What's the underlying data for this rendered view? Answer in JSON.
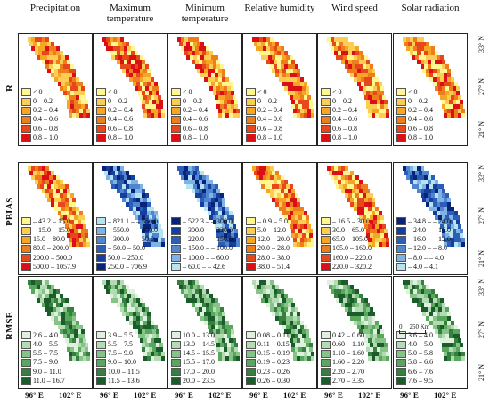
{
  "columns": [
    "Precipitation",
    "Maximum\ntemperature",
    "Minimum\ntemperature",
    "Relative humidity",
    "Wind speed",
    "Solar radiation"
  ],
  "rows": [
    "R",
    "PBIAS",
    "RMSE"
  ],
  "lon_ticks": [
    "96° E",
    "102° E"
  ],
  "lat_ticks": [
    "33° N",
    "27° N",
    "21° N"
  ],
  "scale_bar": {
    "zero": "0",
    "label": "250 Km"
  },
  "palettes": {
    "R": [
      "#fff68f",
      "#fbcd52",
      "#f6a623",
      "#ee7d1c",
      "#e6481c",
      "#db0f16"
    ],
    "PBIAS_warm": [
      "#fff68f",
      "#fbcd52",
      "#f6a623",
      "#ee7d1c",
      "#e6481c",
      "#db0f16"
    ],
    "PBIAS_cool_a": [
      "#b5e3f2",
      "#7fb3e6",
      "#4f86cf",
      "#2c5db7",
      "#163e9c",
      "#08237a"
    ],
    "PBIAS_cool_b": [
      "#08237a",
      "#163e9c",
      "#2c5db7",
      "#4f86cf",
      "#7fb3e6",
      "#b5e3f2"
    ],
    "RMSE": [
      "#dff0df",
      "#b4dbb4",
      "#86c386",
      "#58a75c",
      "#357f3f",
      "#1b5d2a"
    ]
  },
  "legends": {
    "R": [
      "< 0",
      "0 – 0.2",
      "0.2 – 0.4",
      "0.4 – 0.6",
      "0.6 – 0.8",
      "0.8 – 1.0"
    ],
    "PBIAS": [
      [
        "– 43.2 – 15.0",
        "– 15.0 – 15.0",
        "15.0 – 80.0",
        "80.0 – 200.0",
        "200.0 – 500.0",
        "500.0 – 1057.9"
      ],
      [
        "– 821.1 – – 550.0",
        "– 550.0 – – 300.0",
        "– 300.0 – – 50.0",
        "– 50.0 – 50.0",
        "50.0 – 250.0",
        "250.0 – 706.9"
      ],
      [
        "– 522.3 – – 300.0",
        "– 300.0 – – 220.0",
        "– 220.0 – – 150.0",
        "– 150.0 – – 100.0",
        "– 100.0 – – 60.0",
        "– 60.0 – – 42.6"
      ],
      [
        "– 0.9 – 5.0",
        "5.0 – 12.0",
        "12.0 – 20.0",
        "20.0 – 28.0",
        "28.0 – 38.0",
        "38.0 – 51.4"
      ],
      [
        "– 16.5 – 30.0",
        "30.0 – 65.0",
        "65.0 – 105.0",
        "105.0 – 160.0",
        "160.0 – 220.0",
        "220.0 – 320.2"
      ],
      [
        "– 34.8 – – 24.0",
        "– 24.0 – – 16.0",
        "– 16.0 – – 12.0",
        "– 12.0 – – 8.0",
        "– 8.0 – – 4.0",
        "– 4.0 – 4.1"
      ]
    ],
    "RMSE": [
      [
        "2.6 – 4.0",
        "4.0 – 5.5",
        "5.5 – 7.5",
        "7.5 – 9.0",
        "9.0 – 11.0",
        "11.0 – 16.7"
      ],
      [
        "3.9 – 5.5",
        "5.5 – 7.5",
        "7.5 – 9.0",
        "9.0 – 10.0",
        "10.0 – 11.5",
        "11.5 – 13.6"
      ],
      [
        "10.0 – 13.0",
        "13.0 – 14.5",
        "14.5 – 15.5",
        "15.5 – 17.0",
        "17.0 – 20.0",
        "20.0 – 23.5"
      ],
      [
        "0.08 – 0.11",
        "0.11 – 0.15",
        "0.15 – 0.19",
        "0.19 – 0.23",
        "0.23 – 0.26",
        "0.26 – 0.30"
      ],
      [
        "0.42 – 0.60",
        "0.60 – 1.10",
        "1.10 – 1.60",
        "1.60 – 2.20",
        "2.20 – 2.70",
        "2.70 – 3.35"
      ],
      [
        "3.6 – 4.0",
        "4.0 – 5.0",
        "5.0 – 5.8",
        "5.8 – 6.6",
        "6.6 – 7.6",
        "7.6 – 9.5"
      ]
    ]
  }
}
